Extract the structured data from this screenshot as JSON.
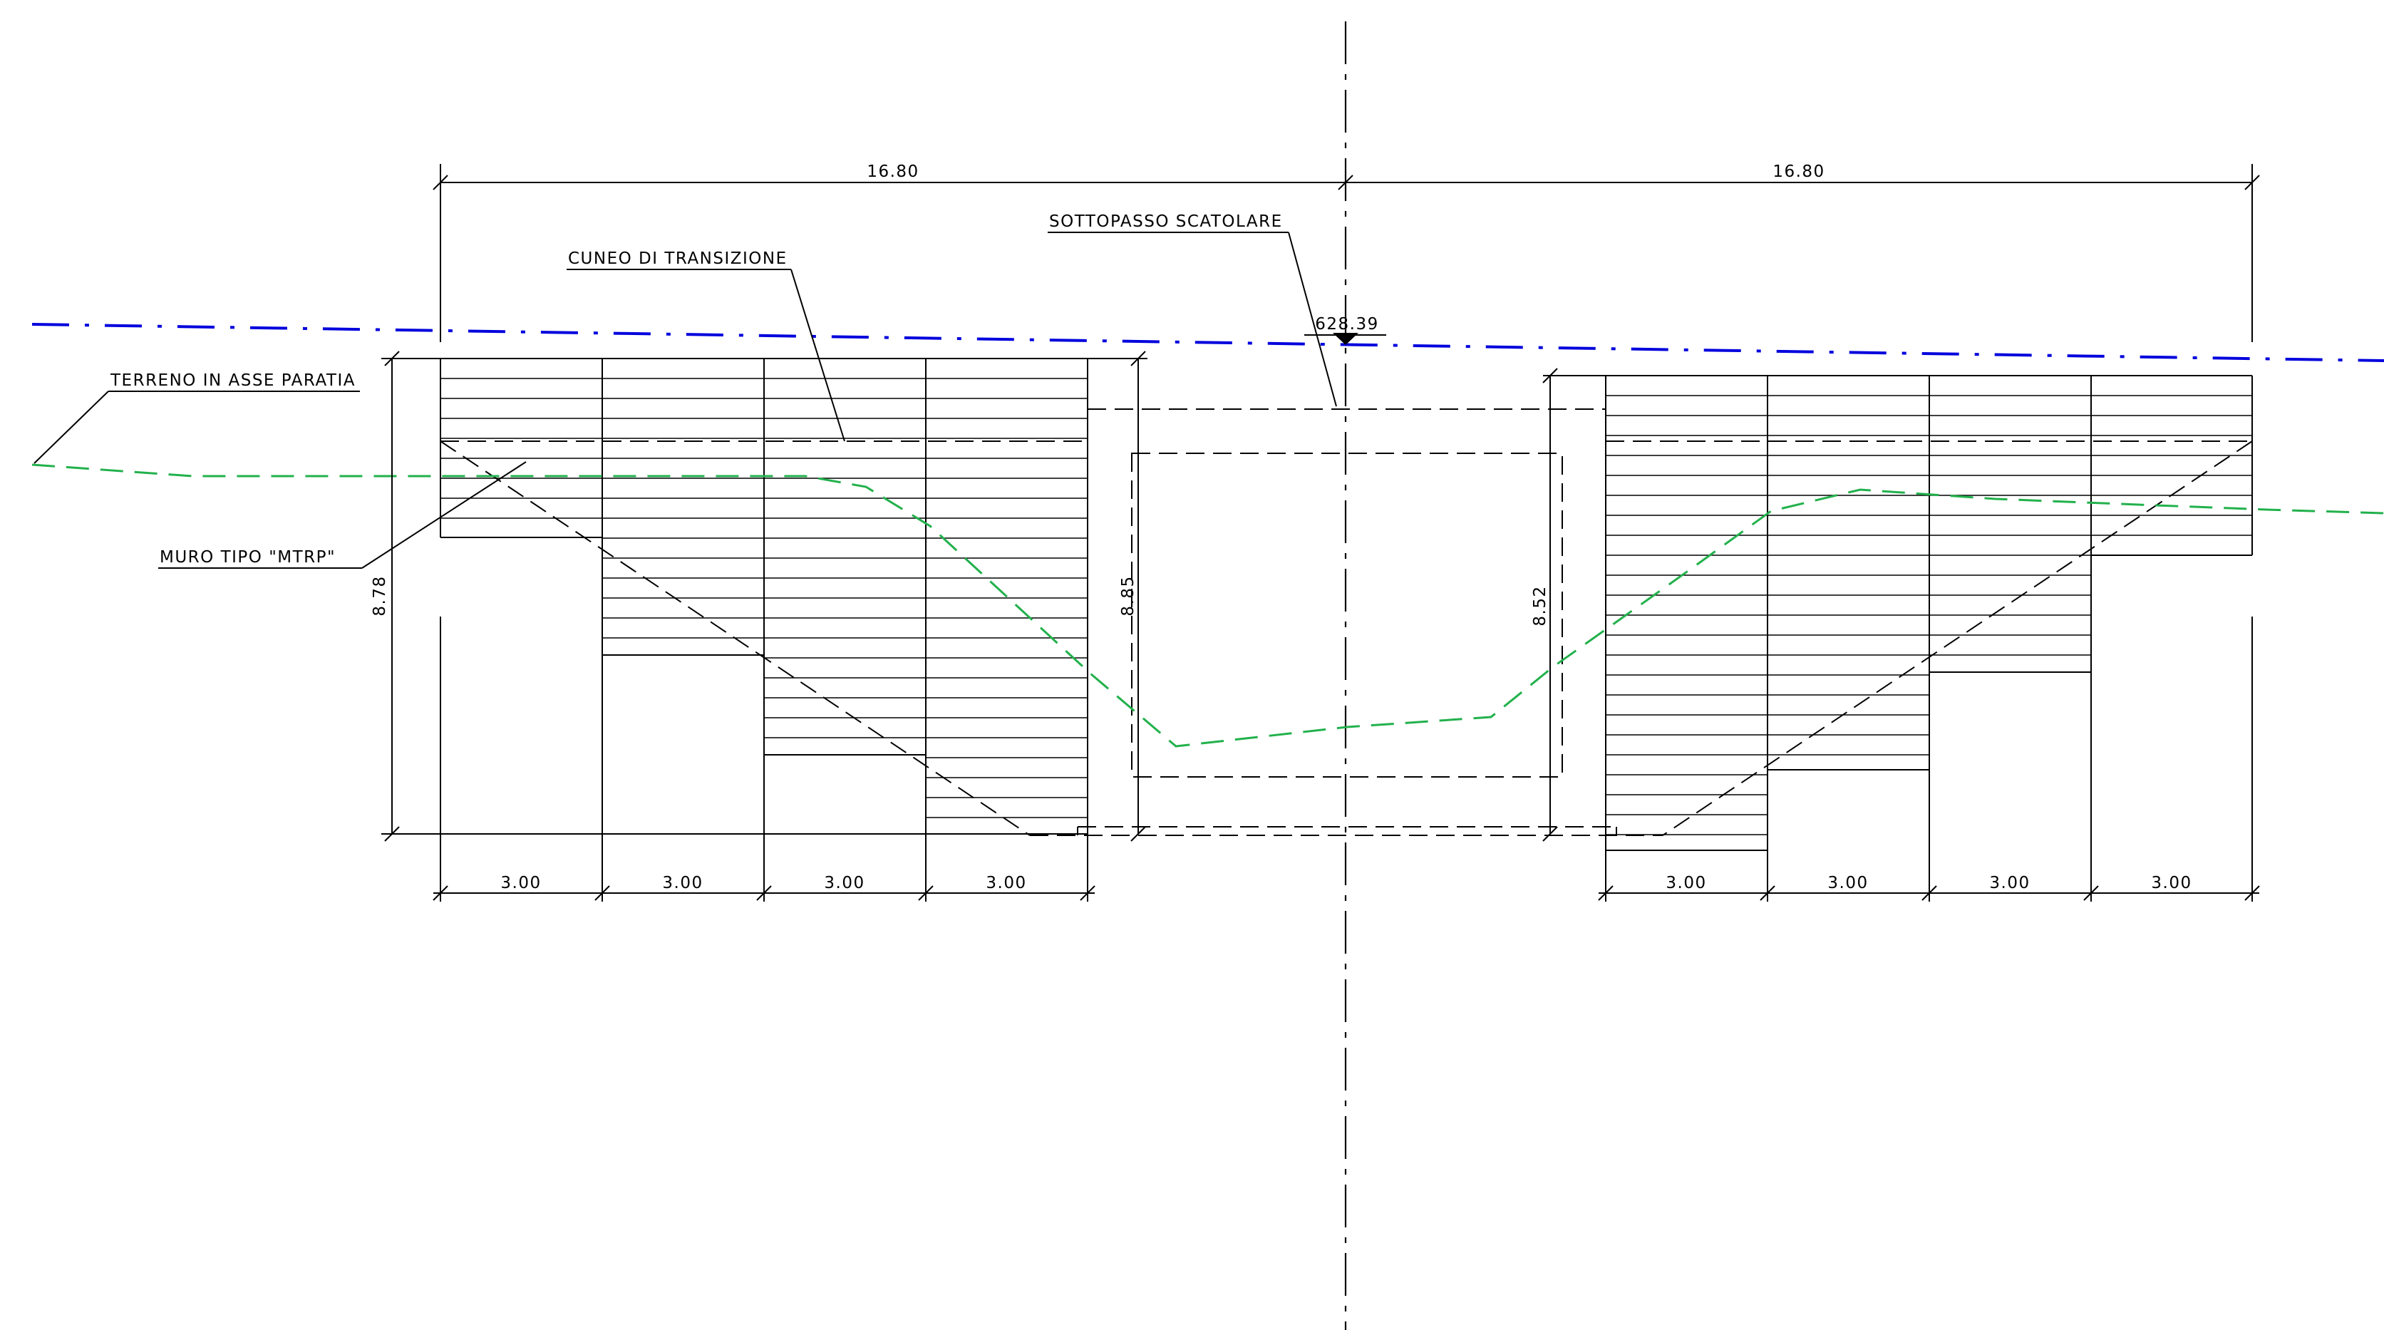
{
  "dimensions": {
    "total_left": "16.80",
    "total_right": "16.80",
    "height_left": "8.78",
    "height_box_left": "8.85",
    "height_box_right": "8.52",
    "bays_left": [
      "3.00",
      "3.00",
      "3.00",
      "3.00"
    ],
    "bays_right": [
      "3.00",
      "3.00",
      "3.00",
      "3.00"
    ]
  },
  "elevation": "628.39",
  "labels": {
    "underpass": "SOTTOPASSO SCATOLARE",
    "transition_wedge": "CUNEO DI TRANSIZIONE",
    "ground": "TERRENO IN ASSE PARATIA",
    "wall": "MURO TIPO \"MTRP\""
  },
  "colors": {
    "ground_line": "#22b14c",
    "level_line": "#0000dd",
    "ink": "#000000"
  }
}
